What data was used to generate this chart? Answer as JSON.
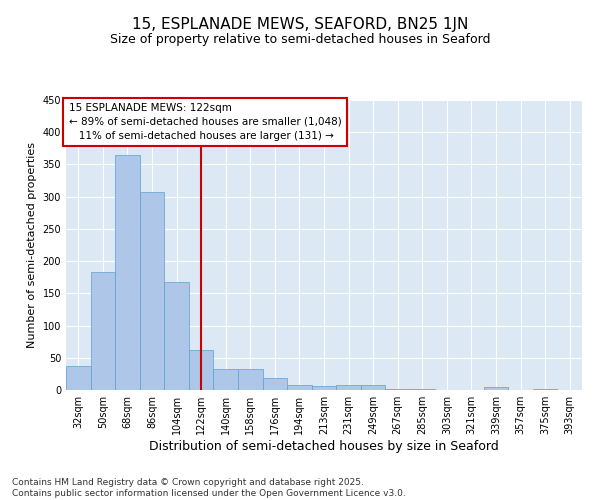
{
  "title1": "15, ESPLANADE MEWS, SEAFORD, BN25 1JN",
  "title2": "Size of property relative to semi-detached houses in Seaford",
  "xlabel": "Distribution of semi-detached houses by size in Seaford",
  "ylabel": "Number of semi-detached properties",
  "categories": [
    "32sqm",
    "50sqm",
    "68sqm",
    "86sqm",
    "104sqm",
    "122sqm",
    "140sqm",
    "158sqm",
    "176sqm",
    "194sqm",
    "213sqm",
    "231sqm",
    "249sqm",
    "267sqm",
    "285sqm",
    "303sqm",
    "321sqm",
    "339sqm",
    "357sqm",
    "375sqm",
    "393sqm"
  ],
  "values": [
    37,
    183,
    365,
    307,
    168,
    62,
    33,
    33,
    18,
    8,
    6,
    7,
    7,
    1,
    1,
    0,
    0,
    4,
    0,
    2,
    0
  ],
  "bar_color": "#aec6e8",
  "bar_edgecolor": "#5a9fd4",
  "vline_x": 5,
  "vline_color": "#cc0000",
  "annotation_box_color": "#cc0000",
  "annotation_text": "15 ESPLANADE MEWS: 122sqm\n← 89% of semi-detached houses are smaller (1,048)\n   11% of semi-detached houses are larger (131) →",
  "ylim": [
    0,
    450
  ],
  "yticks": [
    0,
    50,
    100,
    150,
    200,
    250,
    300,
    350,
    400,
    450
  ],
  "background_color": "#dce9f5",
  "footer_text": "Contains HM Land Registry data © Crown copyright and database right 2025.\nContains public sector information licensed under the Open Government Licence v3.0.",
  "title1_fontsize": 11,
  "title2_fontsize": 9,
  "xlabel_fontsize": 9,
  "ylabel_fontsize": 8,
  "tick_fontsize": 7,
  "annotation_fontsize": 7.5,
  "footer_fontsize": 6.5
}
